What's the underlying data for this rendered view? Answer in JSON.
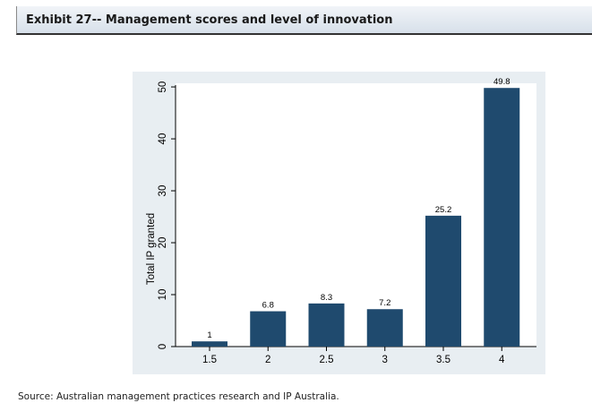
{
  "header": {
    "title": "Exhibit 27-- Management scores and level of innovation"
  },
  "source": "Source: Australian management practices research and IP Australia.",
  "colors": {
    "bar": "#1f4a6e",
    "plot_background": "#ffffff",
    "frame_background": "#e8eef2"
  },
  "chart_data": {
    "type": "bar",
    "title": "",
    "xlabel": "",
    "ylabel": "Total IP granted",
    "categories": [
      "1.5",
      "2",
      "2.5",
      "3",
      "3.5",
      "4"
    ],
    "values": [
      1,
      6.8,
      8.3,
      7.2,
      25.2,
      49.8
    ],
    "value_labels": [
      "1",
      "6.8",
      "8.3",
      "7.2",
      "25.2",
      "49.8"
    ],
    "yticks": [
      0,
      10,
      20,
      30,
      40,
      50
    ],
    "ytick_labels": [
      "0",
      "10",
      "20",
      "30",
      "40",
      "50"
    ],
    "ylim": [
      0,
      50.7
    ],
    "grid": false,
    "legend": "none"
  }
}
